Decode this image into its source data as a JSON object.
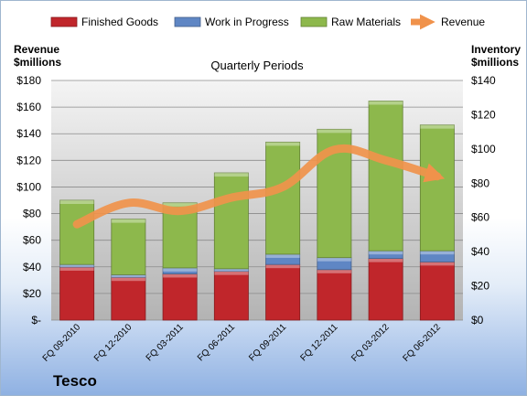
{
  "chart_data": {
    "type": "bar",
    "stacked": true,
    "subtitle": "Quarterly Periods",
    "company": "Tesco",
    "y_left_title": [
      "Revenue",
      "$millions"
    ],
    "y_right_title": [
      "Inventory",
      "$millions"
    ],
    "categories": [
      "FQ 09-2010",
      "FQ 12-2010",
      "FQ 03-2011",
      "FQ 06-2011",
      "FQ 09-2011",
      "FQ 12-2011",
      "FQ 03-2012",
      "FQ 06-2012"
    ],
    "series": [
      {
        "name": "Finished Goods",
        "axis": "right",
        "color": "#c0262b",
        "values": [
          31,
          25,
          27,
          28.5,
          32.5,
          29.5,
          36,
          34
        ]
      },
      {
        "name": "Work in Progress",
        "axis": "right",
        "color": "#5f86c4",
        "values": [
          1.5,
          1.5,
          3.5,
          1.5,
          6,
          7,
          4.5,
          6.5
        ]
      },
      {
        "name": "Raw Materials",
        "axis": "right",
        "color": "#8db84c",
        "values": [
          37.5,
          32.5,
          38,
          56,
          65.5,
          75,
          87.5,
          73.5
        ]
      }
    ],
    "line_series": {
      "name": "Revenue",
      "axis": "left",
      "color": "#f0924b",
      "values": [
        72,
        88,
        82,
        92,
        100,
        128,
        120,
        108
      ]
    },
    "y_left": {
      "min": 0,
      "max": 180,
      "step": 20,
      "tick_labels": [
        "$-",
        "$20",
        "$40",
        "$60",
        "$80",
        "$100",
        "$120",
        "$140",
        "$160",
        "$180"
      ]
    },
    "y_right": {
      "min": 0,
      "max": 140,
      "step": 20,
      "tick_labels": [
        "$0",
        "$20",
        "$40",
        "$60",
        "$80",
        "$100",
        "$120",
        "$140"
      ]
    },
    "grid": true,
    "legend_position": "top"
  }
}
